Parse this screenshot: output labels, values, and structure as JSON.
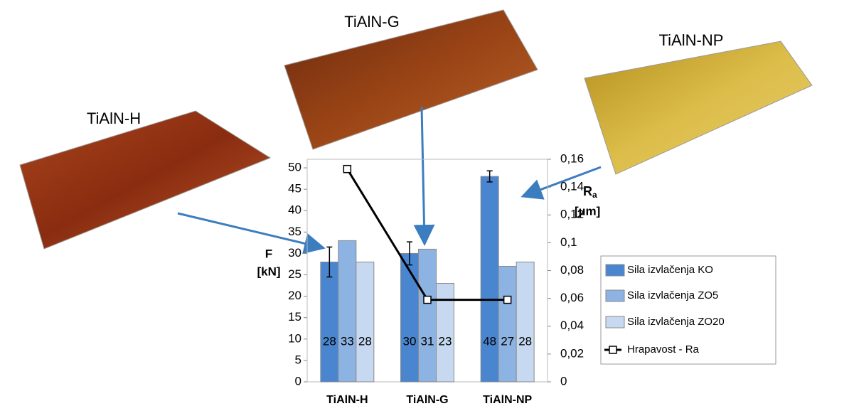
{
  "chart_data": {
    "type": "bar",
    "images": [
      {
        "title": "TiAlN-H"
      },
      {
        "title": "TiAlN-G"
      },
      {
        "title": "TiAlN-NP"
      }
    ],
    "categories": [
      "TiAlN-H",
      "TiAlN-G",
      "TiAlN-NP"
    ],
    "series": [
      {
        "name": "Sila izvlačenja KO",
        "color": "#4a86d0",
        "values": [
          28,
          30,
          48
        ],
        "errors": [
          3.5,
          2.7,
          1.3
        ]
      },
      {
        "name": "Sila izvlačenja ZO5",
        "color": "#8db3e2",
        "values": [
          33,
          31,
          27
        ]
      },
      {
        "name": "Sila izvlačenja ZO20",
        "color": "#c6d9f1",
        "values": [
          28,
          23,
          28
        ]
      },
      {
        "name": "Hrapavost - Ra",
        "type": "line",
        "axis": "y2",
        "color": "#000000",
        "values": [
          0.153,
          0.059,
          0.059
        ]
      }
    ],
    "y_label": [
      "F",
      "[kN]"
    ],
    "y2_label": {
      "symbol": "R",
      "subscript": "a",
      "unit": "[µm]"
    },
    "ylim": [
      0,
      52
    ],
    "yticks": [
      0,
      5,
      10,
      15,
      20,
      25,
      30,
      35,
      40,
      45,
      50
    ],
    "y2lim": [
      0,
      0.16
    ],
    "y2ticks": [
      0,
      {
        "value": 0.02,
        "label": "0,02"
      },
      {
        "value": 0.04,
        "label": "0,04"
      },
      {
        "value": 0.06,
        "label": "0,06"
      },
      {
        "value": 0.08,
        "label": "0,08"
      },
      {
        "value": 0.1,
        "label": "0,1"
      },
      {
        "value": 0.12,
        "label": "0,12"
      },
      {
        "value": 0.14,
        "label": "0,14"
      },
      {
        "value": 0.16,
        "label": "0,16"
      }
    ],
    "grid": false,
    "legend": "right"
  }
}
